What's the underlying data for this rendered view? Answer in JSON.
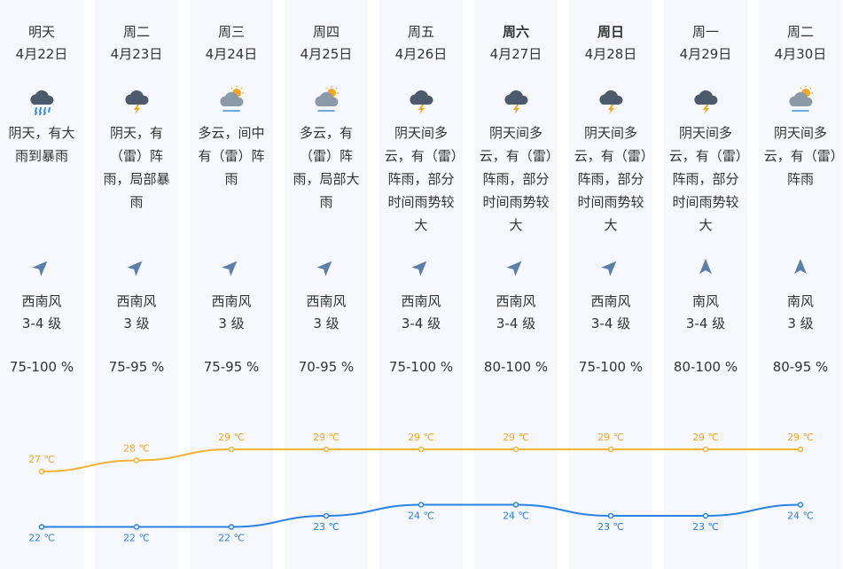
{
  "days": [
    {
      "day": "明天",
      "date": "4月22日",
      "icon": "heavy-rain-icon",
      "desc": "阴天，有大雨到暴雨",
      "wind_dir": "西南风",
      "wind_level": "3-4 级",
      "wind_arrow": "northeast-arrow-icon",
      "humidity": "75-100 %",
      "high": 27,
      "low": 22,
      "high_label": "27 ℃",
      "low_label": "22 ℃",
      "bold": false
    },
    {
      "day": "周二",
      "date": "4月23日",
      "icon": "thunderstorm-icon",
      "desc": "阴天，有（雷）阵雨，局部暴雨",
      "wind_dir": "西南风",
      "wind_level": "3 级",
      "wind_arrow": "northeast-arrow-icon",
      "humidity": "75-95 %",
      "high": 28,
      "low": 22,
      "high_label": "28 ℃",
      "low_label": "22 ℃",
      "bold": false
    },
    {
      "day": "周三",
      "date": "4月24日",
      "icon": "partly-cloudy-icon",
      "desc": "多云，间中有（雷）阵雨",
      "wind_dir": "西南风",
      "wind_level": "3 级",
      "wind_arrow": "northeast-arrow-icon",
      "humidity": "75-95 %",
      "high": 29,
      "low": 22,
      "high_label": "29 ℃",
      "low_label": "22 ℃",
      "bold": false
    },
    {
      "day": "周四",
      "date": "4月25日",
      "icon": "partly-cloudy-icon",
      "desc": "多云，有（雷）阵雨，局部大雨",
      "wind_dir": "西南风",
      "wind_level": "3 级",
      "wind_arrow": "northeast-arrow-icon",
      "humidity": "70-95 %",
      "high": 29,
      "low": 23,
      "high_label": "29 ℃",
      "low_label": "23 ℃",
      "bold": false
    },
    {
      "day": "周五",
      "date": "4月26日",
      "icon": "thunderstorm-icon",
      "desc": "阴天间多云，有（雷）阵雨，部分时间雨势较大",
      "wind_dir": "西南风",
      "wind_level": "3-4 级",
      "wind_arrow": "northeast-arrow-icon",
      "humidity": "75-100 %",
      "high": 29,
      "low": 24,
      "high_label": "29 ℃",
      "low_label": "24 ℃",
      "bold": false
    },
    {
      "day": "周六",
      "date": "4月27日",
      "icon": "thunderstorm-icon",
      "desc": "阴天间多云，有（雷）阵雨，部分时间雨势较大",
      "wind_dir": "西南风",
      "wind_level": "3-4 级",
      "wind_arrow": "northeast-arrow-icon",
      "humidity": "80-100 %",
      "high": 29,
      "low": 24,
      "high_label": "29 ℃",
      "low_label": "24 ℃",
      "bold": true
    },
    {
      "day": "周日",
      "date": "4月28日",
      "icon": "thunderstorm-icon",
      "desc": "阴天间多云，有（雷）阵雨，部分时间雨势较大",
      "wind_dir": "西南风",
      "wind_level": "3-4 级",
      "wind_arrow": "northeast-arrow-icon",
      "humidity": "75-100 %",
      "high": 29,
      "low": 23,
      "high_label": "29 ℃",
      "low_label": "23 ℃",
      "bold": true
    },
    {
      "day": "周一",
      "date": "4月29日",
      "icon": "thunderstorm-icon",
      "desc": "阴天间多云，有（雷）阵雨，部分时间雨势较大",
      "wind_dir": "南风",
      "wind_level": "3-4 级",
      "wind_arrow": "north-arrow-icon",
      "humidity": "80-100 %",
      "high": 29,
      "low": 23,
      "high_label": "29 ℃",
      "low_label": "23 ℃",
      "bold": false
    },
    {
      "day": "周二",
      "date": "4月30日",
      "icon": "partly-cloudy-icon",
      "desc": "阴天间多云，有（雷）阵雨",
      "wind_dir": "南风",
      "wind_level": "3 级",
      "wind_arrow": "north-arrow-icon",
      "humidity": "80-95 %",
      "high": 29,
      "low": 24,
      "high_label": "29 ℃",
      "low_label": "24 ℃",
      "bold": false
    }
  ],
  "colors": {
    "high_line": "#f5b335",
    "low_line": "#2a82e4",
    "high_text": "#f5a623",
    "low_text": "#2a82e4",
    "column_bg": "#f6f8fd",
    "text": "#333333"
  },
  "chart_data": {
    "type": "line",
    "categories": [
      "4月22日",
      "4月23日",
      "4月24日",
      "4月25日",
      "4月26日",
      "4月27日",
      "4月28日",
      "4月29日",
      "4月30日"
    ],
    "series": [
      {
        "values": [
          27,
          28,
          29,
          29,
          29,
          29,
          29,
          29,
          29
        ]
      },
      {
        "values": [
          22,
          22,
          22,
          23,
          24,
          24,
          23,
          23,
          24
        ]
      }
    ]
  }
}
